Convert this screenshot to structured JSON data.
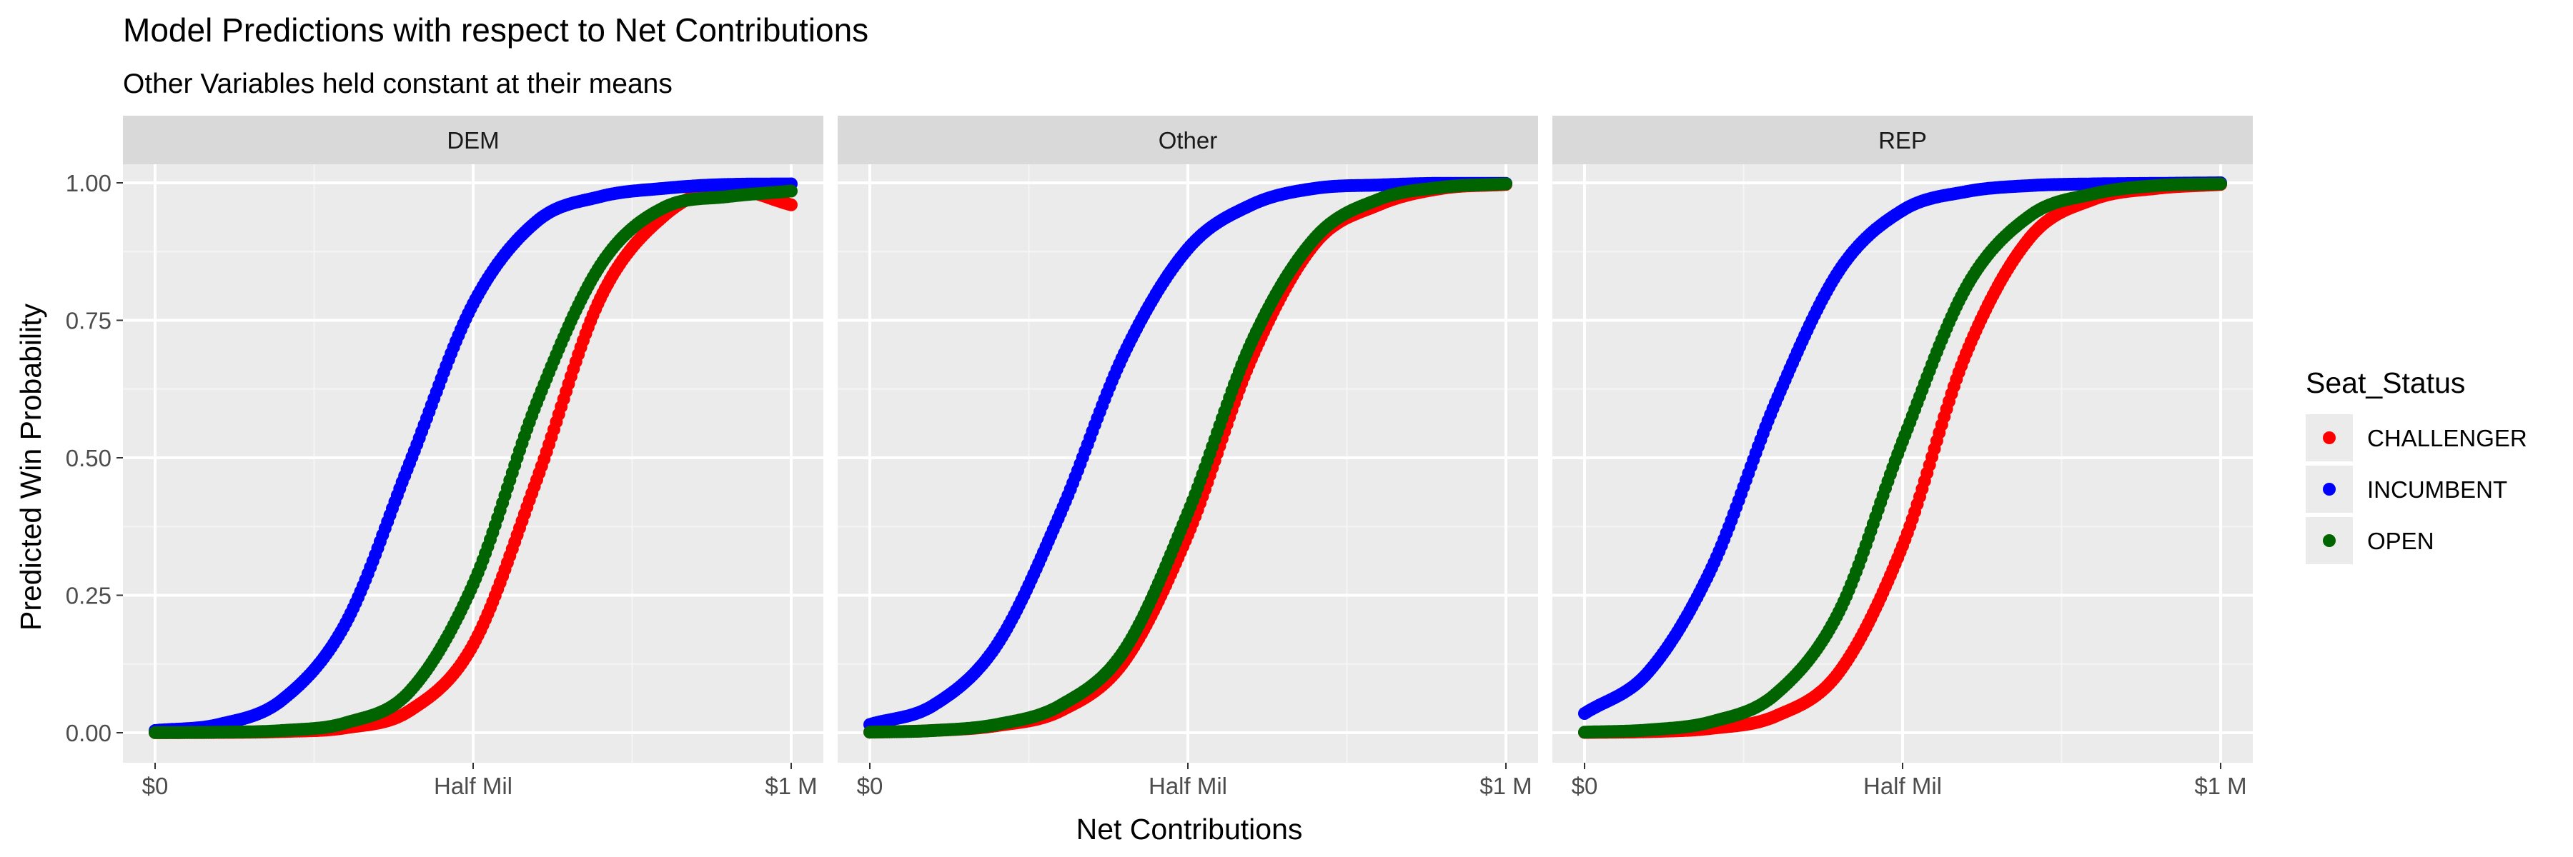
{
  "title": "Model Predictions with respect to Net Contributions",
  "subtitle": "Other Variables held constant at their means",
  "chart_data": {
    "type": "scatter",
    "facets": [
      "DEM",
      "Other",
      "REP"
    ],
    "xlabel": "Net Contributions",
    "ylabel": "Predicted Win Probability",
    "xlim": [
      0,
      1000000
    ],
    "ylim": [
      0,
      1
    ],
    "x_ticks": [
      {
        "value": 0,
        "label": "$0"
      },
      {
        "value": 500000,
        "label": "Half Mil"
      },
      {
        "value": 1000000,
        "label": "$1 M"
      }
    ],
    "y_ticks": [
      {
        "value": 0,
        "label": "0.00"
      },
      {
        "value": 0.25,
        "label": "0.25"
      },
      {
        "value": 0.5,
        "label": "0.50"
      },
      {
        "value": 0.75,
        "label": "0.75"
      },
      {
        "value": 1,
        "label": "1.00"
      }
    ],
    "grid": true,
    "legend": {
      "title": "Seat_Status",
      "position": "right"
    },
    "x": [
      0,
      100000,
      200000,
      300000,
      400000,
      500000,
      600000,
      700000,
      800000,
      900000,
      1000000
    ],
    "panels": [
      {
        "facet": "DEM",
        "series": [
          {
            "name": "CHALLENGER",
            "color": "#FF0000",
            "values": [
              0.0001,
              0.0005,
              0.0022,
              0.009,
              0.04,
              0.16,
              0.46,
              0.79,
              0.94,
              0.99,
              0.96
            ]
          },
          {
            "name": "INCUMBENT",
            "color": "#0000FF",
            "values": [
              0.004,
              0.015,
              0.06,
              0.2,
              0.49,
              0.78,
              0.93,
              0.975,
              0.99,
              0.997,
              0.998
            ]
          },
          {
            "name": "OPEN",
            "color": "#006400",
            "values": [
              0.0002,
              0.001,
              0.004,
              0.018,
              0.075,
              0.27,
              0.6,
              0.85,
              0.955,
              0.975,
              0.985
            ]
          }
        ]
      },
      {
        "facet": "Other",
        "series": [
          {
            "name": "CHALLENGER",
            "color": "#FF0000",
            "values": [
              0.001,
              0.004,
              0.013,
              0.04,
              0.13,
              0.36,
              0.68,
              0.89,
              0.96,
              0.99,
              0.997
            ]
          },
          {
            "name": "INCUMBENT",
            "color": "#0000FF",
            "values": [
              0.015,
              0.05,
              0.16,
              0.4,
              0.69,
              0.88,
              0.96,
              0.99,
              0.996,
              0.999,
              0.999
            ]
          },
          {
            "name": "OPEN",
            "color": "#006400",
            "values": [
              0.001,
              0.004,
              0.015,
              0.05,
              0.15,
              0.4,
              0.71,
              0.9,
              0.97,
              0.992,
              0.998
            ]
          }
        ]
      },
      {
        "facet": "REP",
        "series": [
          {
            "name": "CHALLENGER",
            "color": "#FF0000",
            "values": [
              0.0005,
              0.002,
              0.008,
              0.03,
              0.11,
              0.34,
              0.69,
              0.9,
              0.97,
              0.99,
              0.997
            ]
          },
          {
            "name": "INCUMBENT",
            "color": "#0000FF",
            "values": [
              0.035,
              0.11,
              0.3,
              0.6,
              0.84,
              0.95,
              0.984,
              0.995,
              0.998,
              0.999,
              1.0
            ]
          },
          {
            "name": "OPEN",
            "color": "#006400",
            "values": [
              0.001,
              0.005,
              0.02,
              0.07,
              0.22,
              0.53,
              0.81,
              0.94,
              0.98,
              0.995,
              0.998
            ]
          }
        ]
      }
    ]
  },
  "colors": {
    "panel_background": "#EBEBEB",
    "strip_background": "#D9D9D9",
    "grid_major": "#FFFFFF",
    "grid_minor": "#F5F5F5"
  }
}
